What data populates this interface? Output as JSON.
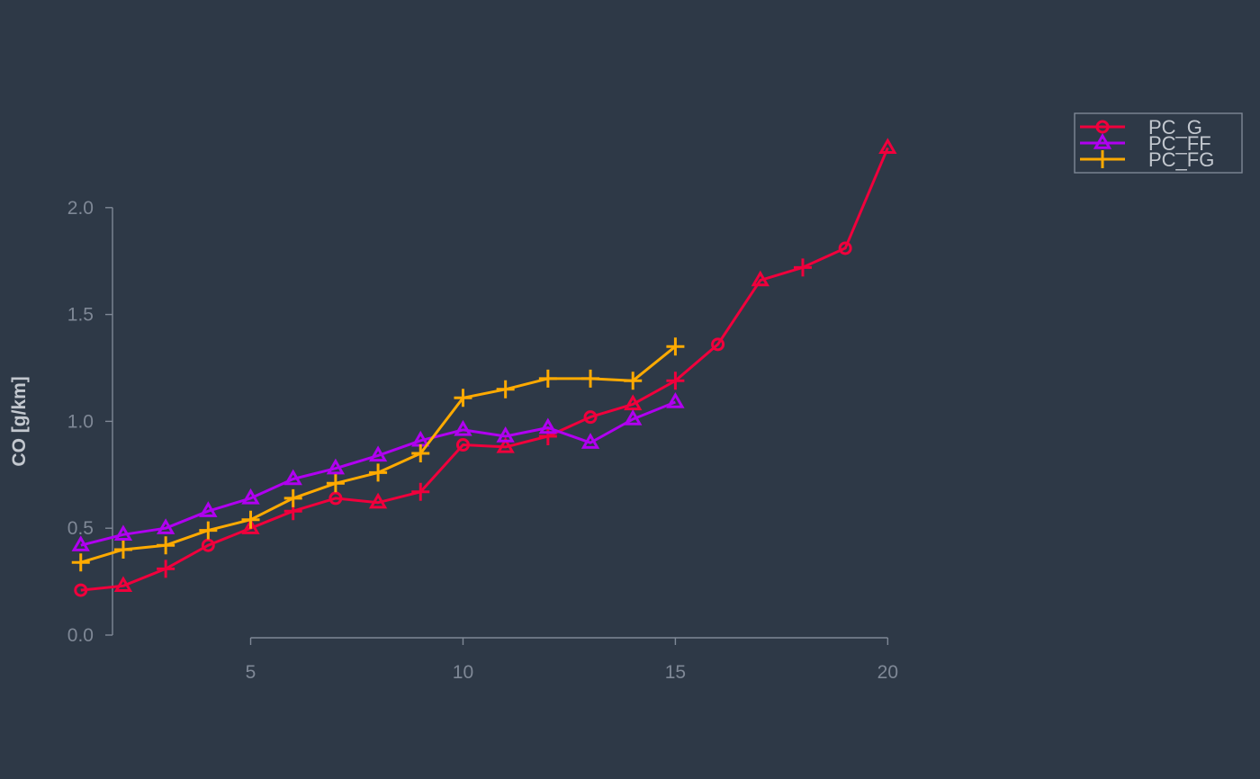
{
  "chart_data": {
    "type": "line",
    "title": "",
    "xlabel": "",
    "ylabel": "CO [g/km]",
    "xlim": [
      0.2,
      24.4
    ],
    "ylim": [
      -0.08,
      2.58
    ],
    "x_ticks": [
      5,
      10,
      15,
      20
    ],
    "x_tick_labels": [
      "5",
      "10",
      "15",
      "20"
    ],
    "y_ticks": [
      0.0,
      0.5,
      1.0,
      1.5,
      2.0
    ],
    "y_tick_labels": [
      "0.0",
      "0.5",
      "1.0",
      "1.5",
      "2.0"
    ],
    "grid": false,
    "legend_position": "top-right",
    "series": [
      {
        "name": "PC_G",
        "color": "#f0003c",
        "marker_cycle": [
          "circle",
          "triangle",
          "plus"
        ],
        "points": [
          {
            "x": 1,
            "y": 0.21
          },
          {
            "x": 2,
            "y": 0.23
          },
          {
            "x": 3,
            "y": 0.31
          },
          {
            "x": 4,
            "y": 0.42
          },
          {
            "x": 5,
            "y": 0.5
          },
          {
            "x": 6,
            "y": 0.58
          },
          {
            "x": 7,
            "y": 0.64
          },
          {
            "x": 8,
            "y": 0.62
          },
          {
            "x": 9,
            "y": 0.67
          },
          {
            "x": 10,
            "y": 0.89
          },
          {
            "x": 11,
            "y": 0.88
          },
          {
            "x": 12,
            "y": 0.93
          },
          {
            "x": 13,
            "y": 1.02
          },
          {
            "x": 14,
            "y": 1.08
          },
          {
            "x": 15,
            "y": 1.19
          },
          {
            "x": 16,
            "y": 1.36
          },
          {
            "x": 17,
            "y": 1.66
          },
          {
            "x": 18,
            "y": 1.72
          },
          {
            "x": 19,
            "y": 1.81
          },
          {
            "x": 20,
            "y": 2.28
          }
        ]
      },
      {
        "name": "PC_FF",
        "color": "#b000f0",
        "marker_cycle": [
          "triangle"
        ],
        "points": [
          {
            "x": 1,
            "y": 0.42
          },
          {
            "x": 2,
            "y": 0.47
          },
          {
            "x": 3,
            "y": 0.5
          },
          {
            "x": 4,
            "y": 0.58
          },
          {
            "x": 5,
            "y": 0.64
          },
          {
            "x": 6,
            "y": 0.73
          },
          {
            "x": 7,
            "y": 0.78
          },
          {
            "x": 8,
            "y": 0.84
          },
          {
            "x": 9,
            "y": 0.91
          },
          {
            "x": 10,
            "y": 0.96
          },
          {
            "x": 11,
            "y": 0.93
          },
          {
            "x": 12,
            "y": 0.97
          },
          {
            "x": 13,
            "y": 0.9
          },
          {
            "x": 14,
            "y": 1.01
          },
          {
            "x": 15,
            "y": 1.09
          }
        ]
      },
      {
        "name": "PC_FG",
        "color": "#ffaa00",
        "marker_cycle": [
          "plus"
        ],
        "points": [
          {
            "x": 1,
            "y": 0.34
          },
          {
            "x": 2,
            "y": 0.4
          },
          {
            "x": 3,
            "y": 0.42
          },
          {
            "x": 4,
            "y": 0.49
          },
          {
            "x": 5,
            "y": 0.54
          },
          {
            "x": 6,
            "y": 0.64
          },
          {
            "x": 7,
            "y": 0.71
          },
          {
            "x": 8,
            "y": 0.76
          },
          {
            "x": 9,
            "y": 0.85
          },
          {
            "x": 10,
            "y": 1.11
          },
          {
            "x": 11,
            "y": 1.15
          },
          {
            "x": 12,
            "y": 1.2
          },
          {
            "x": 13,
            "y": 1.2
          },
          {
            "x": 14,
            "y": 1.19
          },
          {
            "x": 15,
            "y": 1.35
          }
        ]
      }
    ],
    "legend_entries": [
      {
        "label": "PC_G",
        "color": "#f0003c",
        "marker": "circle"
      },
      {
        "label": "PC_FF",
        "color": "#b000f0",
        "marker": "triangle"
      },
      {
        "label": "PC_FG",
        "color": "#ffaa00",
        "marker": "plus"
      }
    ]
  }
}
